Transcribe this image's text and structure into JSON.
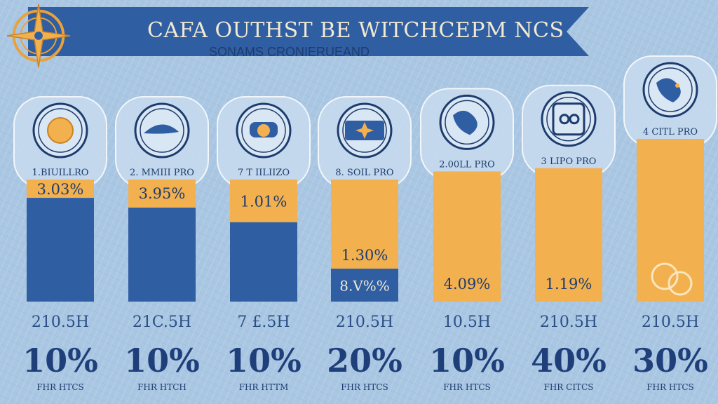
{
  "header": {
    "title": "CAFA OUTHST BE WITCHCEPM NCS",
    "subtitle": "SONAMS CRONIERUEAND",
    "icon": "compass-icon"
  },
  "colors": {
    "bar_blue": "#2f5ea3",
    "bar_orange": "#f2b04f",
    "banner": "#2f5ea3",
    "text_dark": "#1d3c6e"
  },
  "chart_data": {
    "type": "bar",
    "title": "CAFA OUTHST BE WITCHCEPM NCS",
    "subtitle": "SONAMS CRONIERUEAND",
    "categories": [
      "1.BIUILLRO",
      "2. MMIII PRO",
      "7 T IILIIZO",
      "8. SOIL PRO",
      "2.00LL PRO",
      "3 LIPO PRO",
      "4 CITL PRO"
    ],
    "icons": [
      "coin-icon",
      "dolphin-icon",
      "car-icon",
      "star-icon",
      "globe-icon",
      "chain-icon",
      "world-icon"
    ],
    "series": [
      {
        "name": "",
        "color": "#f2b04f",
        "values": [
          0.15,
          0.23,
          0.35,
          0.73,
          1.0,
          1.0,
          1.0
        ],
        "labels": [
          "3.03%",
          "3.95%",
          "1.01%",
          "1.30%",
          "4.09%",
          "1.19%",
          ""
        ]
      },
      {
        "name": "",
        "color": "#2f5ea3",
        "values": [
          0.85,
          0.77,
          0.65,
          0.27,
          0,
          0,
          0
        ],
        "labels": [
          "",
          "",
          "",
          "8.V%%",
          "",
          "",
          ""
        ]
      }
    ],
    "bar_heights": [
      0.75,
      0.75,
      0.75,
      0.75,
      0.8,
      0.82,
      1.0
    ],
    "bottom_codes": [
      "210.5H",
      "21C.5H",
      "7 £.5H",
      "210.5H",
      "10.5H",
      "210.5H",
      "210.5H"
    ],
    "percents": [
      "10%",
      "10%",
      "10%",
      "20%",
      "10%",
      "40%",
      "30%"
    ],
    "footers": [
      "FHR HTCS",
      "FHR HTCH",
      "FHR HTTM",
      "FHR HTCS",
      "FHR HTCS",
      "FHR CITCS",
      "FHR HTCS"
    ],
    "ylim": [
      0,
      1
    ]
  }
}
